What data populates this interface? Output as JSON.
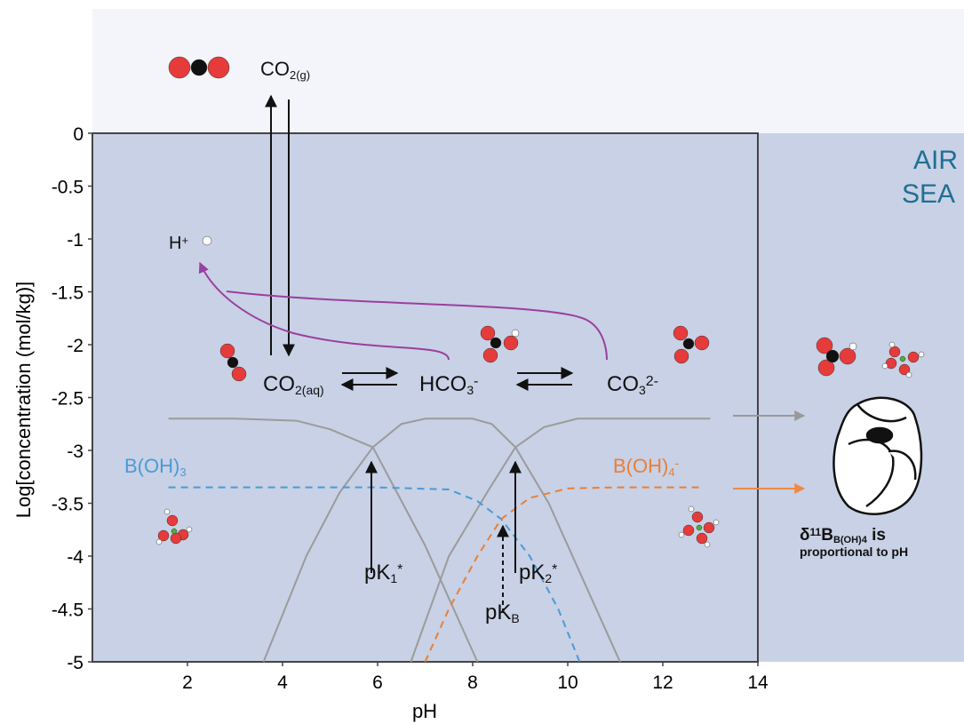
{
  "chart_data": {
    "type": "line",
    "x_label": "pH",
    "y_label": "Log[concentration (mol/kg)]",
    "xlim": [
      0,
      14
    ],
    "ylim": [
      -5,
      0
    ],
    "xticks": [
      2,
      4,
      6,
      8,
      10,
      12,
      14
    ],
    "yticks": [
      0,
      -0.5,
      -1,
      -1.5,
      -2,
      -2.5,
      -3,
      -3.5,
      -4,
      -4.5,
      -5
    ],
    "grid": false,
    "series": [
      {
        "color": "#9b9b9b",
        "dashed": false,
        "x": [
          1.6,
          3,
          4.3,
          5,
          5.9,
          7,
          8.1
        ],
        "values": [
          -2.7,
          -2.7,
          -2.72,
          -2.8,
          -2.97,
          -3.9,
          -5
        ]
      },
      {
        "color": "#9b9b9b",
        "dashed": false,
        "x": [
          3.6,
          4.5,
          5.2,
          5.9,
          6.5,
          7,
          8,
          8.4,
          8.9,
          9.6,
          10.3,
          11.1
        ],
        "values": [
          -5,
          -4,
          -3.4,
          -2.97,
          -2.75,
          -2.7,
          -2.7,
          -2.75,
          -2.97,
          -3.5,
          -4.2,
          -5
        ]
      },
      {
        "color": "#9b9b9b",
        "dashed": false,
        "x": [
          6.7,
          7.5,
          8.3,
          8.9,
          9.5,
          10.2,
          11,
          13
        ],
        "values": [
          -5,
          -4,
          -3.4,
          -2.97,
          -2.78,
          -2.7,
          -2.7,
          -2.7
        ]
      },
      {
        "color": "#4a9ad8",
        "dashed": true,
        "x": [
          1.6,
          6,
          7.5,
          8.1,
          8.6,
          9.2,
          9.8,
          10.25
        ],
        "values": [
          -3.35,
          -3.35,
          -3.37,
          -3.48,
          -3.65,
          -4,
          -4.5,
          -5
        ]
      },
      {
        "color": "#ea7f35",
        "dashed": true,
        "x": [
          7,
          7.5,
          8.1,
          8.6,
          9.2,
          10,
          11,
          12.8
        ],
        "values": [
          -5,
          -4.5,
          -4,
          -3.65,
          -3.45,
          -3.36,
          -3.35,
          -3.35
        ]
      }
    ],
    "annotations": [
      {
        "parts": [
          {
            "text": "CO"
          },
          {
            "sub": "2(g)"
          }
        ]
      },
      {
        "parts": [
          {
            "text": "H"
          },
          {
            "sup": "+"
          }
        ]
      },
      {
        "parts": [
          {
            "text": "CO"
          },
          {
            "sub": "2(aq)"
          }
        ]
      },
      {
        "parts": [
          {
            "text": "HCO"
          },
          {
            "sub": "3"
          },
          {
            "sup": "-"
          }
        ]
      },
      {
        "parts": [
          {
            "text": "CO"
          },
          {
            "sub": "3"
          },
          {
            "sup": "2-"
          }
        ]
      },
      {
        "parts": [
          {
            "text": "B(OH)"
          },
          {
            "sub": "3"
          }
        ]
      },
      {
        "parts": [
          {
            "text": "B(OH)"
          },
          {
            "sub": "4"
          },
          {
            "sup": "-"
          }
        ]
      },
      {
        "parts": [
          {
            "text": "pK"
          },
          {
            "sub": "1"
          },
          {
            "sup": "*"
          }
        ]
      },
      {
        "parts": [
          {
            "text": "pK"
          },
          {
            "sub": "2"
          },
          {
            "sup": "*"
          }
        ]
      },
      {
        "parts": [
          {
            "text": "pK"
          },
          {
            "sub": "B"
          }
        ]
      },
      {
        "parts": [
          {
            "text": "AIR"
          }
        ]
      },
      {
        "parts": [
          {
            "text": "SEA"
          }
        ]
      },
      {
        "parts": [
          {
            "text": "δ"
          },
          {
            "sup": "11"
          },
          {
            "text": "B"
          },
          {
            "sub": "B(OH)"
          },
          {
            "sub": "4"
          },
          {
            "text": " is"
          }
        ]
      },
      {
        "parts": [
          {
            "text": "proportional to pH"
          }
        ]
      }
    ]
  }
}
